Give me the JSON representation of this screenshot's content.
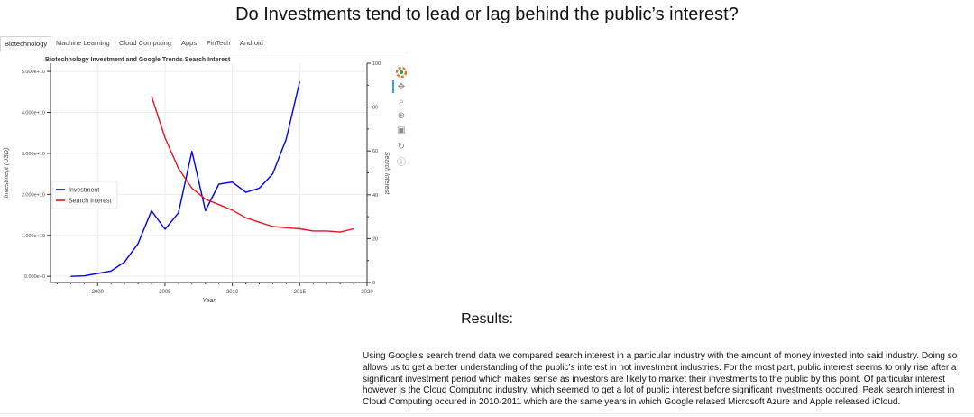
{
  "page": {
    "title": "Do Investments tend to lead or lag behind the public’s interest?"
  },
  "tabs": [
    {
      "label": "Biotechnology",
      "active": true
    },
    {
      "label": "Machine Learning",
      "active": false
    },
    {
      "label": "Cloud Computing",
      "active": false
    },
    {
      "label": "Apps",
      "active": false
    },
    {
      "label": "FinTech",
      "active": false
    },
    {
      "label": "Android",
      "active": false
    }
  ],
  "toolbar": {
    "tools": [
      "bokeh-logo-icon",
      "pan-icon",
      "box-zoom-icon",
      "wheel-zoom-icon",
      "save-icon",
      "reset-icon",
      "help-icon"
    ],
    "active_color": "#26aae1"
  },
  "chart_data": {
    "type": "line",
    "title": "Biotechnology Investment and Google Trends Search Interest",
    "xlabel": "Year",
    "ylabel": "Investment (USD)",
    "y2label": "Search Interest",
    "xlim": [
      1996.5,
      2020
    ],
    "ylim": [
      -1500000000,
      52000000000
    ],
    "y2lim": [
      0,
      100
    ],
    "x_ticks": [
      2000,
      2005,
      2010,
      2015,
      2020
    ],
    "y_ticks": [
      0,
      10000000000,
      20000000000,
      30000000000,
      40000000000,
      50000000000
    ],
    "y_tick_labels": [
      "0.000e+0",
      "1.000e+10",
      "2.000e+10",
      "3.000e+10",
      "4.000e+10",
      "5.000e+10"
    ],
    "y2_ticks": [
      0,
      20,
      40,
      60,
      80,
      100
    ],
    "grid": true,
    "legend_position": "left-middle",
    "series": [
      {
        "name": "Investment",
        "axis": "left",
        "color": "#0000ee",
        "x": [
          1998,
          1999,
          2000,
          2001,
          2002,
          2003,
          2004,
          2005,
          2006,
          2007,
          2008,
          2009,
          2010,
          2011,
          2012,
          2013,
          2014,
          2015
        ],
        "values": [
          0,
          100000000,
          700000000,
          1300000000,
          3500000000,
          8000000000,
          16000000000,
          11500000000,
          15500000000,
          30500000000,
          16000000000,
          22500000000,
          23000000000,
          20500000000,
          21500000000,
          25000000000,
          33500000000,
          47500000000
        ]
      },
      {
        "name": "Search Interest",
        "axis": "right",
        "color": "#e8141b",
        "x": [
          2004,
          2005,
          2006,
          2007,
          2008,
          2009,
          2010,
          2011,
          2012,
          2013,
          2014,
          2015,
          2016,
          2017,
          2018,
          2019
        ],
        "values": [
          85,
          66,
          52,
          43,
          38,
          35.5,
          33,
          29.5,
          27.5,
          25.5,
          25,
          24.5,
          23.5,
          23.5,
          23,
          24.5
        ]
      }
    ]
  },
  "results": {
    "heading": "Results:",
    "text": "Using Google's search trend data we compared search interest in a particular industry with the amount of money invested into said industry. Doing so allows us to get a better understanding of the public’s interest in hot investment industries. For the most part, public interest seems to only rise after a significant investment period which makes sense as investors are likely to market their investments to the public by this point. Of particular interest however is the Cloud Computing industry, which seemed to get a lot of public interest before significant investments occured. Peak search interest in Cloud Computing occured in 2010-2011 which are the same years in which Google relased Microsoft Azure and Apple released iCloud."
  }
}
